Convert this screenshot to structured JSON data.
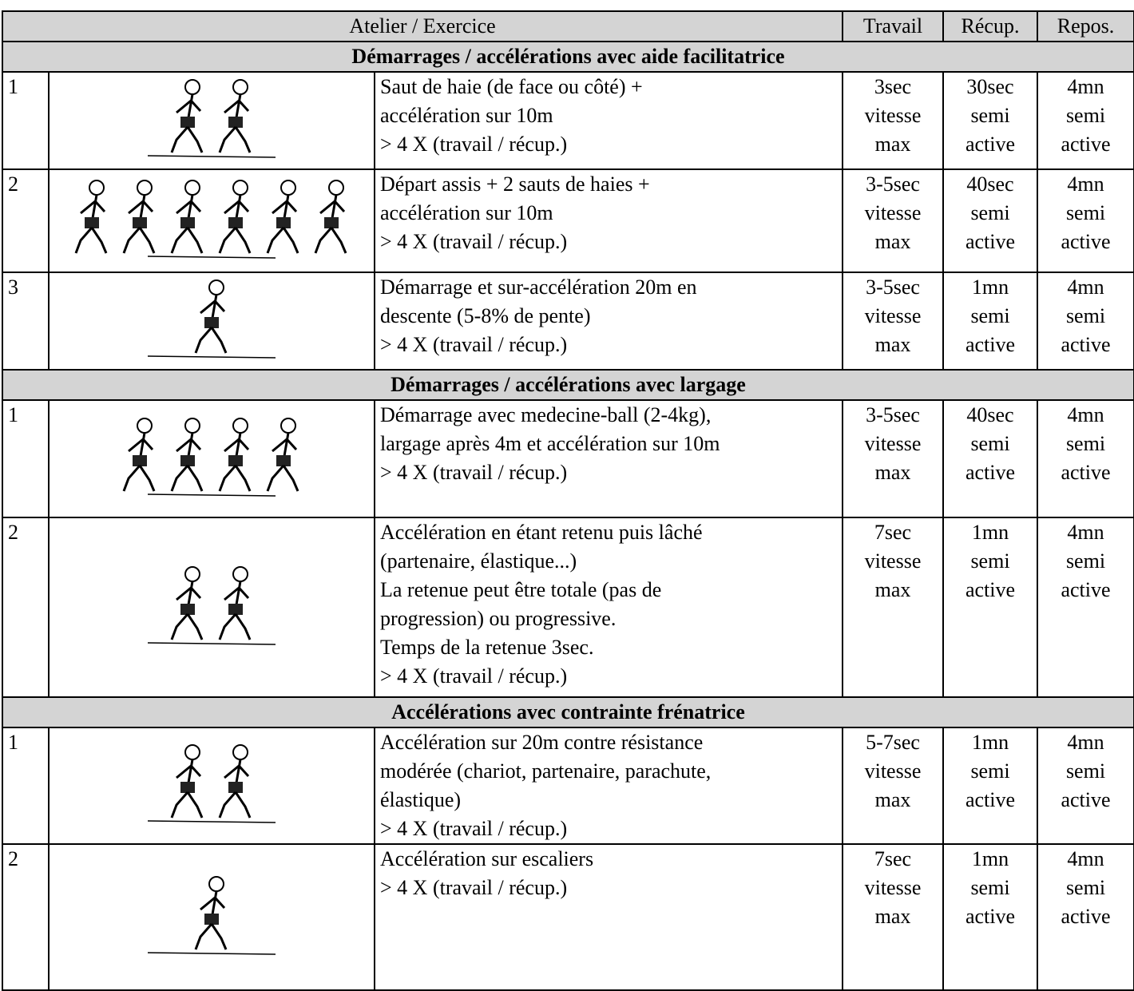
{
  "table": {
    "header": [
      "Atelier / Exercice",
      "Travail",
      "Récup.",
      "Repos."
    ],
    "sections": [
      {
        "title": "Démarrages / accélérations avec aide facilitatrice",
        "rows": [
          {
            "num": "1",
            "description": [
              "Saut de haie (de face ou côté) +",
              "accélération sur 10m",
              "> 4 X (travail / récup.)"
            ],
            "travail": [
              "3sec",
              "vitesse",
              "max"
            ],
            "recup": [
              "30sec",
              "semi",
              "active"
            ],
            "repos": [
              "4mn",
              "semi",
              "active"
            ]
          },
          {
            "num": "2",
            "description": [
              "Départ assis + 2 sauts de haies +",
              "accélération sur 10m",
              "> 4 X (travail / récup.)"
            ],
            "travail": [
              "3-5sec",
              "vitesse",
              "max"
            ],
            "recup": [
              "40sec",
              "semi",
              "active"
            ],
            "repos": [
              "4mn",
              "semi",
              "active"
            ]
          },
          {
            "num": "3",
            "description": [
              "Démarrage et sur-accélération 20m en",
              "descente (5-8% de pente)",
              "> 4 X (travail / récup.)"
            ],
            "travail": [
              "3-5sec",
              "vitesse",
              "max"
            ],
            "recup": [
              "1mn",
              "semi",
              "active"
            ],
            "repos": [
              "4mn",
              "semi",
              "active"
            ]
          }
        ]
      },
      {
        "title": "Démarrages / accélérations avec largage",
        "rows": [
          {
            "num": "1",
            "description": [
              "Démarrage avec medecine-ball (2-4kg),",
              "largage après 4m et accélération sur 10m",
              "> 4 X (travail / récup.)"
            ],
            "travail": [
              "3-5sec",
              "vitesse",
              "max"
            ],
            "recup": [
              "40sec",
              "semi",
              "active"
            ],
            "repos": [
              "4mn",
              "semi",
              "active"
            ]
          },
          {
            "num": "2",
            "description": [
              "Accélération en étant retenu puis lâché",
              "(partenaire, élastique...)",
              "La retenue peut être totale (pas de",
              "progression) ou progressive.",
              "Temps de la retenue 3sec.",
              "> 4 X (travail / récup.)"
            ],
            "travail": [
              "7sec",
              "vitesse",
              "max"
            ],
            "recup": [
              "1mn",
              "semi",
              "active"
            ],
            "repos": [
              "4mn",
              "semi",
              "active"
            ]
          }
        ]
      },
      {
        "title": "Accélérations avec contrainte frénatrice",
        "rows": [
          {
            "num": "1",
            "description": [
              "Accélération sur 20m contre résistance",
              "modérée (chariot, partenaire, parachute,",
              "élastique)",
              "> 4 X (travail / récup.)"
            ],
            "travail": [
              "5-7sec",
              "vitesse",
              "max"
            ],
            "recup": [
              "1mn",
              "semi",
              "active"
            ],
            "repos": [
              "4mn",
              "semi",
              "active"
            ]
          },
          {
            "num": "2",
            "description": [
              "Accélération sur escaliers",
              "> 4 X (travail / récup.)"
            ],
            "travail": [
              "7sec",
              "vitesse",
              "max"
            ],
            "recup": [
              "1mn",
              "semi",
              "active"
            ],
            "repos": [
              "4mn",
              "semi",
              "active"
            ]
          }
        ]
      }
    ]
  }
}
